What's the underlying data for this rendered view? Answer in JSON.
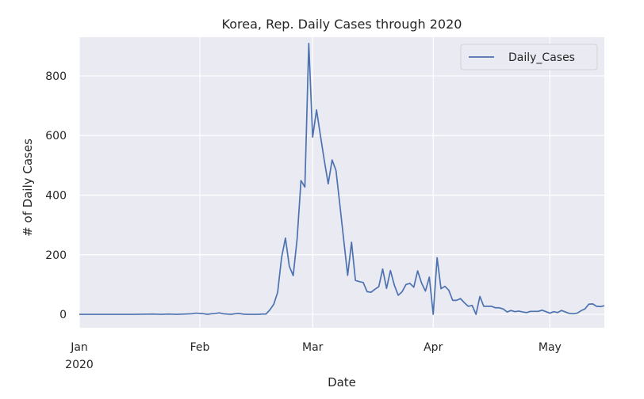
{
  "chart_data": {
    "type": "line",
    "title": "Korea, Rep. Daily Cases through 2020",
    "xlabel": "Date",
    "ylabel": "# of Daily Cases",
    "xlim": [
      "2020-01-01",
      "2020-05-15"
    ],
    "ylim": [
      -45,
      930
    ],
    "x_ticks": [
      {
        "date": "2020-01-01",
        "label": "Jan",
        "sublabel": "2020"
      },
      {
        "date": "2020-02-01",
        "label": "Feb",
        "sublabel": ""
      },
      {
        "date": "2020-03-01",
        "label": "Mar",
        "sublabel": ""
      },
      {
        "date": "2020-04-01",
        "label": "Apr",
        "sublabel": ""
      },
      {
        "date": "2020-05-01",
        "label": "May",
        "sublabel": ""
      }
    ],
    "y_ticks": [
      0,
      200,
      400,
      600,
      800
    ],
    "grid": true,
    "legend_position": "top-right",
    "series": [
      {
        "name": "Daily_Cases",
        "color": "#4c72b0",
        "points": [
          [
            "2020-01-01",
            0
          ],
          [
            "2020-01-05",
            0
          ],
          [
            "2020-01-10",
            0
          ],
          [
            "2020-01-15",
            0
          ],
          [
            "2020-01-20",
            1
          ],
          [
            "2020-01-22",
            0
          ],
          [
            "2020-01-24",
            1
          ],
          [
            "2020-01-26",
            0
          ],
          [
            "2020-01-28",
            1
          ],
          [
            "2020-01-30",
            2
          ],
          [
            "2020-01-31",
            4
          ],
          [
            "2020-02-01",
            3
          ],
          [
            "2020-02-02",
            2
          ],
          [
            "2020-02-03",
            0
          ],
          [
            "2020-02-04",
            2
          ],
          [
            "2020-02-05",
            3
          ],
          [
            "2020-02-06",
            5
          ],
          [
            "2020-02-07",
            2
          ],
          [
            "2020-02-08",
            1
          ],
          [
            "2020-02-09",
            0
          ],
          [
            "2020-02-10",
            2
          ],
          [
            "2020-02-11",
            3
          ],
          [
            "2020-02-12",
            1
          ],
          [
            "2020-02-13",
            0
          ],
          [
            "2020-02-14",
            0
          ],
          [
            "2020-02-15",
            0
          ],
          [
            "2020-02-16",
            0
          ],
          [
            "2020-02-17",
            1
          ],
          [
            "2020-02-18",
            1
          ],
          [
            "2020-02-19",
            15
          ],
          [
            "2020-02-20",
            34
          ],
          [
            "2020-02-21",
            74
          ],
          [
            "2020-02-22",
            190
          ],
          [
            "2020-02-23",
            256
          ],
          [
            "2020-02-24",
            161
          ],
          [
            "2020-02-25",
            130
          ],
          [
            "2020-02-26",
            253
          ],
          [
            "2020-02-27",
            449
          ],
          [
            "2020-02-28",
            427
          ],
          [
            "2020-02-29",
            909
          ],
          [
            "2020-03-01",
            595
          ],
          [
            "2020-03-02",
            686
          ],
          [
            "2020-03-03",
            600
          ],
          [
            "2020-03-04",
            516
          ],
          [
            "2020-03-05",
            438
          ],
          [
            "2020-03-06",
            518
          ],
          [
            "2020-03-07",
            483
          ],
          [
            "2020-03-08",
            367
          ],
          [
            "2020-03-09",
            248
          ],
          [
            "2020-03-10",
            131
          ],
          [
            "2020-03-11",
            242
          ],
          [
            "2020-03-12",
            114
          ],
          [
            "2020-03-13",
            110
          ],
          [
            "2020-03-14",
            107
          ],
          [
            "2020-03-15",
            76
          ],
          [
            "2020-03-16",
            74
          ],
          [
            "2020-03-17",
            84
          ],
          [
            "2020-03-18",
            93
          ],
          [
            "2020-03-19",
            152
          ],
          [
            "2020-03-20",
            87
          ],
          [
            "2020-03-21",
            147
          ],
          [
            "2020-03-22",
            98
          ],
          [
            "2020-03-23",
            64
          ],
          [
            "2020-03-24",
            76
          ],
          [
            "2020-03-25",
            100
          ],
          [
            "2020-03-26",
            104
          ],
          [
            "2020-03-27",
            91
          ],
          [
            "2020-03-28",
            146
          ],
          [
            "2020-03-29",
            105
          ],
          [
            "2020-03-30",
            78
          ],
          [
            "2020-03-31",
            125
          ],
          [
            "2020-04-01",
            0
          ],
          [
            "2020-04-02",
            190
          ],
          [
            "2020-04-03",
            86
          ],
          [
            "2020-04-04",
            94
          ],
          [
            "2020-04-05",
            81
          ],
          [
            "2020-04-06",
            47
          ],
          [
            "2020-04-07",
            47
          ],
          [
            "2020-04-08",
            53
          ],
          [
            "2020-04-09",
            39
          ],
          [
            "2020-04-10",
            27
          ],
          [
            "2020-04-11",
            30
          ],
          [
            "2020-04-12",
            0
          ],
          [
            "2020-04-13",
            60
          ],
          [
            "2020-04-14",
            27
          ],
          [
            "2020-04-15",
            27
          ],
          [
            "2020-04-16",
            27
          ],
          [
            "2020-04-17",
            22
          ],
          [
            "2020-04-18",
            22
          ],
          [
            "2020-04-19",
            18
          ],
          [
            "2020-04-20",
            8
          ],
          [
            "2020-04-21",
            13
          ],
          [
            "2020-04-22",
            9
          ],
          [
            "2020-04-23",
            11
          ],
          [
            "2020-04-24",
            8
          ],
          [
            "2020-04-25",
            6
          ],
          [
            "2020-04-26",
            10
          ],
          [
            "2020-04-27",
            10
          ],
          [
            "2020-04-28",
            10
          ],
          [
            "2020-04-29",
            14
          ],
          [
            "2020-04-30",
            9
          ],
          [
            "2020-05-01",
            4
          ],
          [
            "2020-05-02",
            9
          ],
          [
            "2020-05-03",
            6
          ],
          [
            "2020-05-04",
            13
          ],
          [
            "2020-05-05",
            8
          ],
          [
            "2020-05-06",
            3
          ],
          [
            "2020-05-07",
            2
          ],
          [
            "2020-05-08",
            4
          ],
          [
            "2020-05-09",
            12
          ],
          [
            "2020-05-10",
            18
          ],
          [
            "2020-05-11",
            34
          ],
          [
            "2020-05-12",
            35
          ],
          [
            "2020-05-13",
            27
          ],
          [
            "2020-05-14",
            26
          ],
          [
            "2020-05-15",
            29
          ]
        ]
      }
    ]
  }
}
